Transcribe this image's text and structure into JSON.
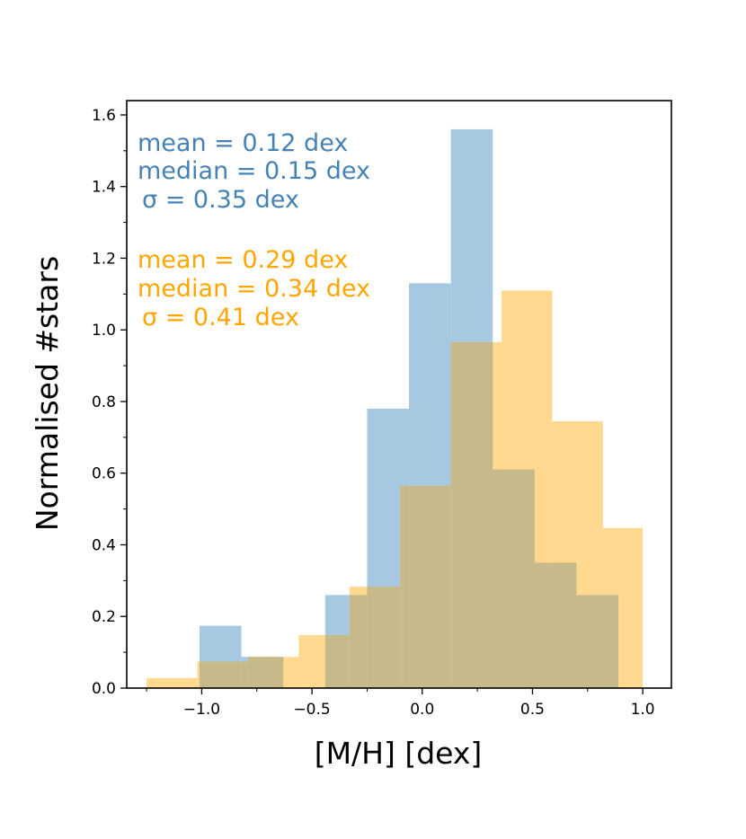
{
  "chart_data": {
    "type": "histogram",
    "xlabel": "[M/H] [dex]",
    "ylabel": "Normalised #stars",
    "xlim": [
      -1.34,
      1.13
    ],
    "ylim": [
      0,
      1.64
    ],
    "xticks": [
      -1.0,
      -0.5,
      0.0,
      0.5,
      1.0
    ],
    "xtick_labels": [
      "−1.0",
      "−0.5",
      "0.0",
      "0.5",
      "1.0"
    ],
    "yticks": [
      0.0,
      0.2,
      0.4,
      0.6,
      0.8,
      1.0,
      1.2,
      1.4,
      1.6
    ],
    "ytick_labels": [
      "0.0",
      "0.2",
      "0.4",
      "0.6",
      "0.8",
      "1.0",
      "1.2",
      "1.4",
      "1.6"
    ],
    "series": [
      {
        "name": "blue",
        "color": "#a6c8e0",
        "bins": [
          {
            "x0": -1.01,
            "x1": -0.82,
            "value": 0.174
          },
          {
            "x0": -0.82,
            "x1": -0.63,
            "value": 0.087
          },
          {
            "x0": -0.63,
            "x1": -0.44,
            "value": 0.0
          },
          {
            "x0": -0.44,
            "x1": -0.25,
            "value": 0.26
          },
          {
            "x0": -0.25,
            "x1": -0.06,
            "value": 0.78
          },
          {
            "x0": -0.06,
            "x1": 0.13,
            "value": 1.13
          },
          {
            "x0": 0.13,
            "x1": 0.32,
            "value": 1.56
          },
          {
            "x0": 0.32,
            "x1": 0.51,
            "value": 0.61
          },
          {
            "x0": 0.51,
            "x1": 0.7,
            "value": 0.35
          },
          {
            "x0": 0.7,
            "x1": 0.89,
            "value": 0.26
          }
        ]
      },
      {
        "name": "orange",
        "color": "#ffd990",
        "bins": [
          {
            "x0": -1.25,
            "x1": -1.02,
            "value": 0.028
          },
          {
            "x0": -1.02,
            "x1": -0.79,
            "value": 0.074
          },
          {
            "x0": -0.79,
            "x1": -0.56,
            "value": 0.087
          },
          {
            "x0": -0.56,
            "x1": -0.33,
            "value": 0.148
          },
          {
            "x0": -0.33,
            "x1": -0.1,
            "value": 0.283
          },
          {
            "x0": -0.1,
            "x1": 0.13,
            "value": 0.565
          },
          {
            "x0": 0.13,
            "x1": 0.36,
            "value": 0.966
          },
          {
            "x0": 0.36,
            "x1": 0.59,
            "value": 1.11
          },
          {
            "x0": 0.59,
            "x1": 0.82,
            "value": 0.745
          },
          {
            "x0": 0.82,
            "x1": 1.0,
            "value": 0.447
          }
        ]
      }
    ],
    "overlap_color": "#c7ba8a",
    "annotations": [
      {
        "series": "blue",
        "color": "#4682b4",
        "lines": [
          "mean = 0.12 dex",
          "median = 0.15 dex",
          "σ = 0.35 dex"
        ]
      },
      {
        "series": "orange",
        "color": "#ffa500",
        "lines": [
          "mean = 0.29 dex",
          "median = 0.34 dex",
          "σ = 0.41 dex"
        ]
      }
    ]
  }
}
